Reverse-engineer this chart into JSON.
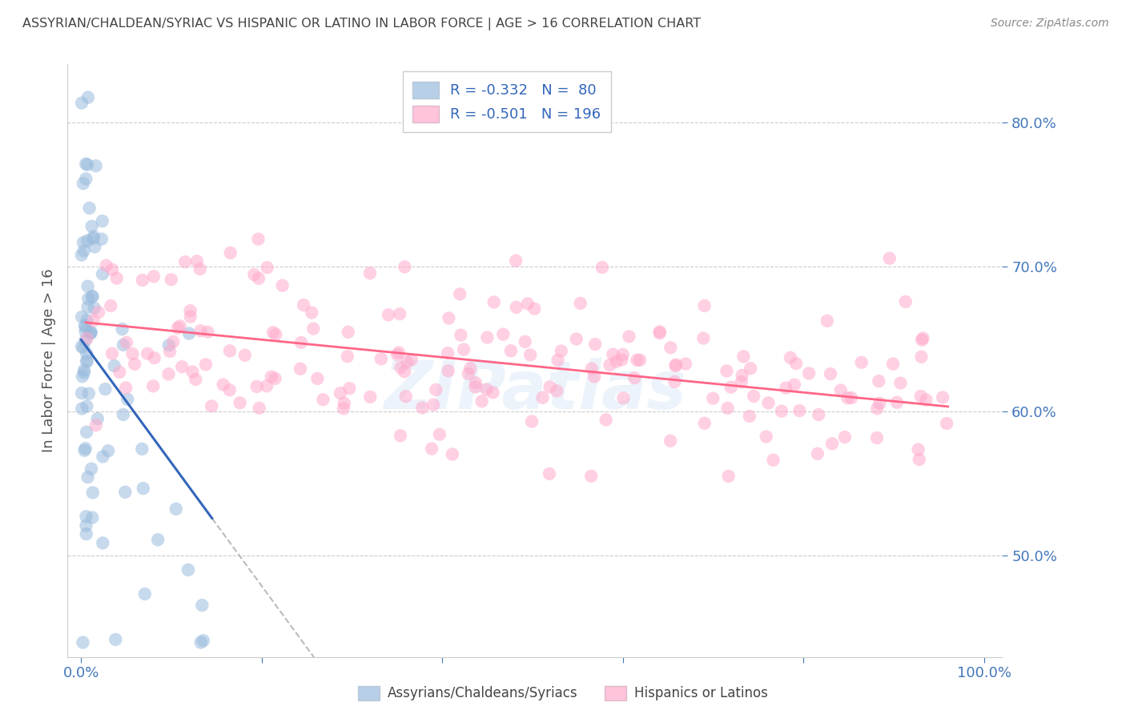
{
  "title": "ASSYRIAN/CHALDEAN/SYRIAC VS HISPANIC OR LATINO IN LABOR FORCE | AGE > 16 CORRELATION CHART",
  "source": "Source: ZipAtlas.com",
  "ylabel": "In Labor Force | Age > 16",
  "blue_R": -0.332,
  "blue_N": 80,
  "pink_R": -0.501,
  "pink_N": 196,
  "blue_color": "#99BBDD",
  "pink_color": "#FFAACC",
  "blue_line_color": "#3366BB",
  "pink_line_color": "#FF6688",
  "legend_label_blue": "Assyrians/Chaldeans/Syriacs",
  "legend_label_pink": "Hispanics or Latinos",
  "watermark_zip": "ZIP",
  "watermark_atlas": "atlas",
  "background_color": "#FFFFFF",
  "grid_color": "#CCCCCC",
  "title_color": "#444444",
  "source_color": "#888888",
  "axis_tick_color": "#4477BB",
  "ylabel_color": "#555555"
}
